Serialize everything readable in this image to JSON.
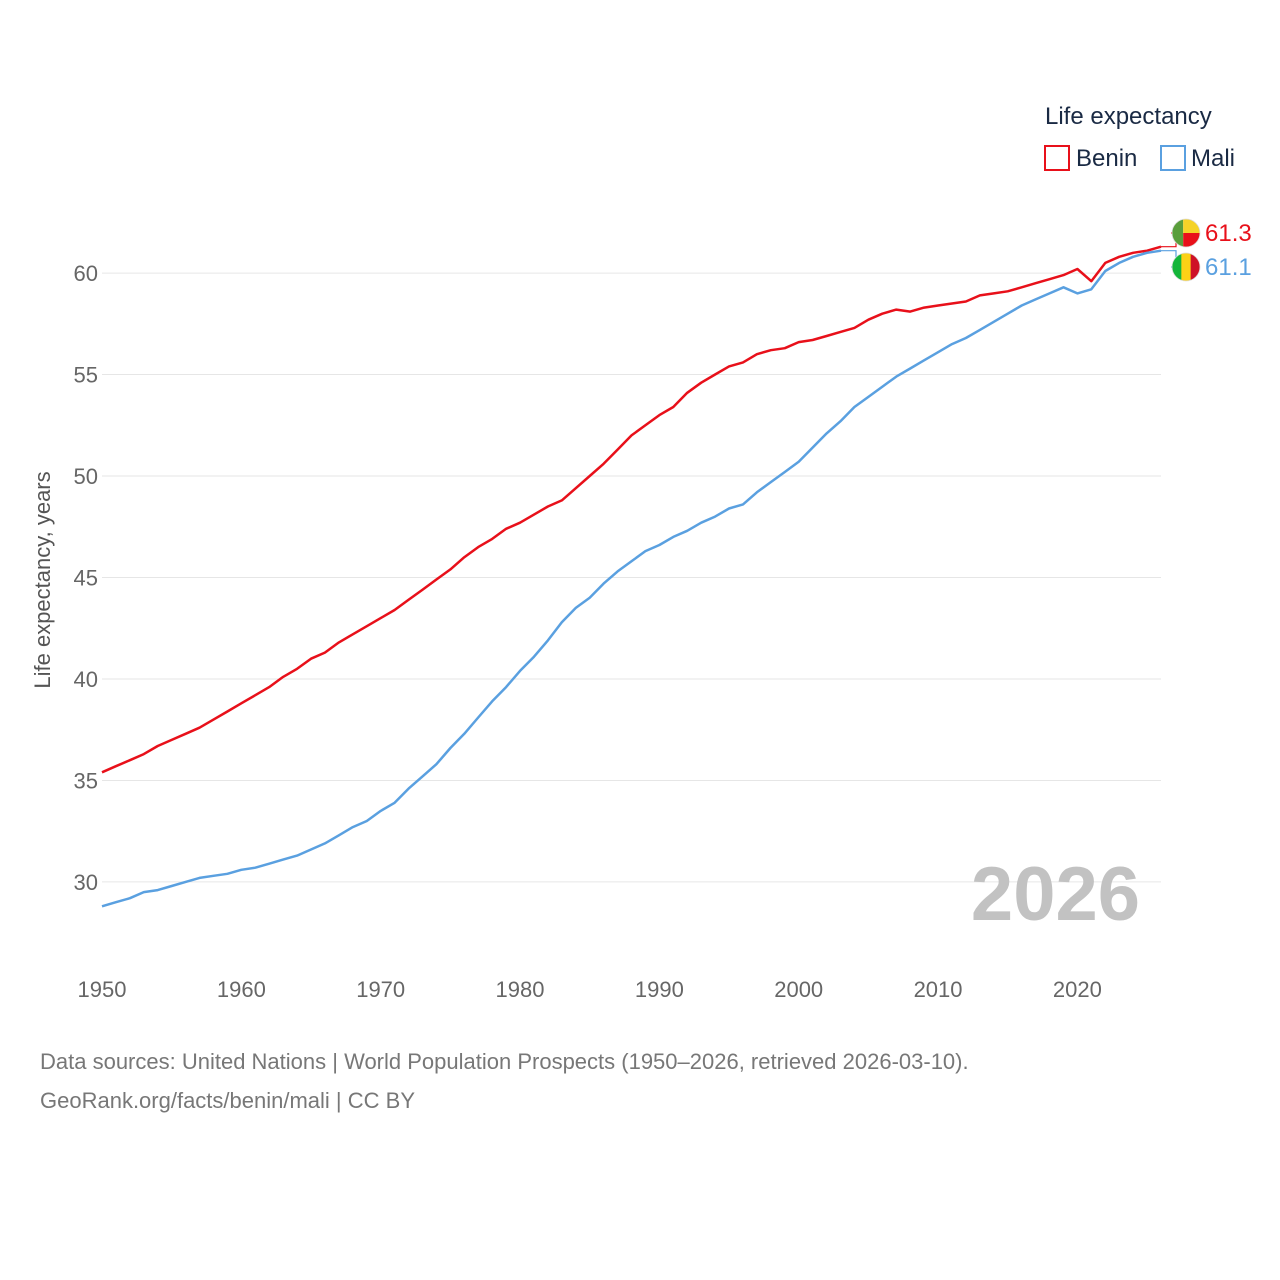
{
  "chart_data": {
    "type": "line",
    "ylabel": "Life expectancy, years",
    "xlabel": "",
    "xlim": [
      1950,
      2026
    ],
    "ylim": [
      26.4,
      63.6
    ],
    "x_ticks": [
      1950,
      1960,
      1970,
      1980,
      1990,
      2000,
      2010,
      2020
    ],
    "y_ticks": [
      30,
      35,
      40,
      45,
      50,
      55,
      60
    ],
    "legend_title": "Life expectancy",
    "legend_position": "top-right",
    "current_year": "2026",
    "x": [
      1950,
      1951,
      1952,
      1953,
      1954,
      1955,
      1956,
      1957,
      1958,
      1959,
      1960,
      1961,
      1962,
      1963,
      1964,
      1965,
      1966,
      1967,
      1968,
      1969,
      1970,
      1971,
      1972,
      1973,
      1974,
      1975,
      1976,
      1977,
      1978,
      1979,
      1980,
      1981,
      1982,
      1983,
      1984,
      1985,
      1986,
      1987,
      1988,
      1989,
      1990,
      1991,
      1992,
      1993,
      1994,
      1995,
      1996,
      1997,
      1998,
      1999,
      2000,
      2001,
      2002,
      2003,
      2004,
      2005,
      2006,
      2007,
      2008,
      2009,
      2010,
      2011,
      2012,
      2013,
      2014,
      2015,
      2016,
      2017,
      2018,
      2019,
      2020,
      2021,
      2022,
      2023,
      2024,
      2025,
      2026
    ],
    "series": [
      {
        "name": "Benin",
        "color": "#e8101a",
        "end_label": "61.3",
        "flag_colors": [
          "#5a9e3c",
          "#f5d328",
          "#e8101a"
        ],
        "values": [
          35.4,
          35.7,
          36.0,
          36.3,
          36.7,
          37.0,
          37.3,
          37.6,
          38.0,
          38.4,
          38.8,
          39.2,
          39.6,
          40.1,
          40.5,
          41.0,
          41.3,
          41.8,
          42.2,
          42.6,
          43.0,
          43.4,
          43.9,
          44.4,
          44.9,
          45.4,
          46.0,
          46.5,
          46.9,
          47.4,
          47.7,
          48.1,
          48.5,
          48.8,
          49.4,
          50.0,
          50.6,
          51.3,
          52.0,
          52.5,
          53.0,
          53.4,
          54.1,
          54.6,
          55.0,
          55.4,
          55.6,
          56.0,
          56.2,
          56.3,
          56.6,
          56.7,
          56.9,
          57.1,
          57.3,
          57.7,
          58.0,
          58.2,
          58.1,
          58.3,
          58.4,
          58.5,
          58.6,
          58.9,
          59.0,
          59.1,
          59.3,
          59.5,
          59.7,
          59.9,
          60.2,
          59.6,
          60.5,
          60.8,
          61.0,
          61.1,
          61.3
        ]
      },
      {
        "name": "Mali",
        "color": "#5aa0e0",
        "end_label": "61.1",
        "flag_colors": [
          "#14b53a",
          "#fcd116",
          "#ce1126"
        ],
        "values": [
          28.8,
          29.0,
          29.2,
          29.5,
          29.6,
          29.8,
          30.0,
          30.2,
          30.3,
          30.4,
          30.6,
          30.7,
          30.9,
          31.1,
          31.3,
          31.6,
          31.9,
          32.3,
          32.7,
          33.0,
          33.5,
          33.9,
          34.6,
          35.2,
          35.8,
          36.6,
          37.3,
          38.1,
          38.9,
          39.6,
          40.4,
          41.1,
          41.9,
          42.8,
          43.5,
          44.0,
          44.7,
          45.3,
          45.8,
          46.3,
          46.6,
          47.0,
          47.3,
          47.7,
          48.0,
          48.4,
          48.6,
          49.2,
          49.7,
          50.2,
          50.7,
          51.4,
          52.1,
          52.7,
          53.4,
          53.9,
          54.4,
          54.9,
          55.3,
          55.7,
          56.1,
          56.5,
          56.8,
          57.2,
          57.6,
          58.0,
          58.4,
          58.7,
          59.0,
          59.3,
          59.0,
          59.2,
          60.1,
          60.5,
          60.8,
          61.0,
          61.1
        ]
      }
    ]
  },
  "footer": {
    "line1": "Data sources: United Nations | World Population Prospects (1950–2026, retrieved 2026-03-10).",
    "line2": "GeoRank.org/facts/benin/mali | CC BY"
  }
}
